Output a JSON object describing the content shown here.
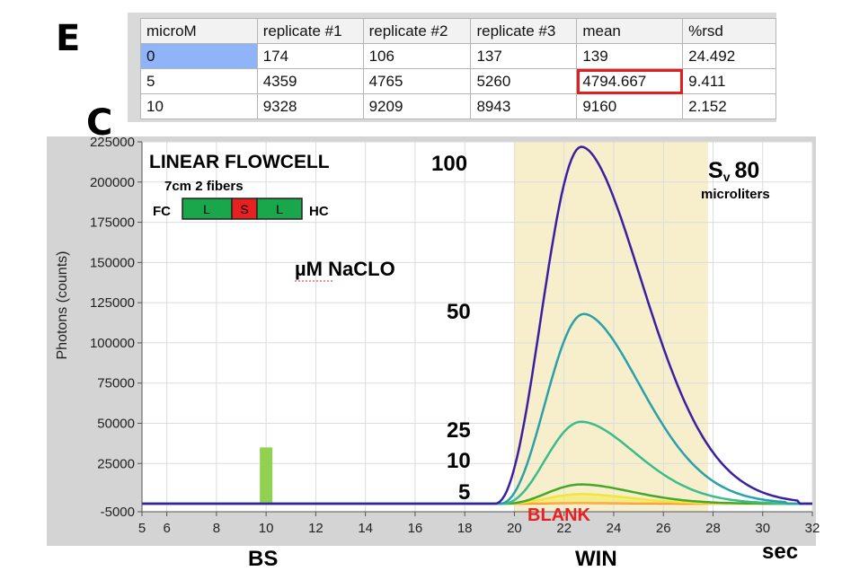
{
  "panels": {
    "top": "E",
    "bottom": "C"
  },
  "table": {
    "headers": [
      "microM",
      "replicate #1",
      "replicate #2",
      "replicate #3",
      "mean",
      "%rsd"
    ],
    "rows": [
      [
        "0",
        "174",
        "106",
        "137",
        "139",
        "24.492"
      ],
      [
        "5",
        "4359",
        "4765",
        "5260",
        "4794.667",
        "9.411"
      ],
      [
        "10",
        "9328",
        "9209",
        "8943",
        "9160",
        "2.152"
      ]
    ],
    "selected_cell": [
      0,
      0
    ],
    "highlighted_cell": [
      1,
      4
    ]
  },
  "chart_data": {
    "type": "line",
    "ylabel": "Photons (counts)",
    "xlabel": "sec",
    "xlim": [
      5,
      32
    ],
    "ylim": [
      -5000,
      225000
    ],
    "xticks": [
      5,
      6,
      8,
      10,
      12,
      14,
      16,
      18,
      20,
      22,
      24,
      26,
      28,
      30,
      32
    ],
    "yticks": [
      -5000,
      25000,
      50000,
      75000,
      100000,
      125000,
      150000,
      175000,
      200000,
      225000
    ],
    "grid": true,
    "series": [
      {
        "name": "100",
        "color": "#3b1fa0",
        "baseline": 0,
        "peak": 222000,
        "peak_x": 22.7,
        "start_x": 19.2,
        "end_x": 31.5
      },
      {
        "name": "50",
        "color": "#2aa0a8",
        "baseline": 0,
        "peak": 118000,
        "peak_x": 22.8,
        "start_x": 19.4,
        "end_x": 31
      },
      {
        "name": "25",
        "color": "#3cbc8a",
        "baseline": 0,
        "peak": 51000,
        "peak_x": 22.7,
        "start_x": 19.5,
        "end_x": 30.5
      },
      {
        "name": "10",
        "color": "#44a828",
        "baseline": 0,
        "peak": 12000,
        "peak_x": 22.7,
        "start_x": 19.6,
        "end_x": 30
      },
      {
        "name": "5",
        "color": "#f0e63c",
        "baseline": 0,
        "peak": 6000,
        "peak_x": 22.7,
        "start_x": 19.6,
        "end_x": 29.5
      },
      {
        "name": "BLANK",
        "color": "#ff8c3a",
        "baseline": 0,
        "peak": 400,
        "peak_x": 22.7,
        "start_x": 19.6,
        "end_x": 29
      }
    ],
    "window_region": {
      "label": "WIN",
      "x_start": 20,
      "x_end": 27.8,
      "color": "#f7efcc"
    },
    "bs_marker": {
      "label": "BS",
      "x": 10,
      "value": 35000,
      "color": "#92d050"
    },
    "annotations": {
      "title": "LINEAR FLOWCELL",
      "subtitle": "7cm 2 fibers",
      "fc": "FC",
      "hc": "HC",
      "segments": [
        "L",
        "S",
        "L"
      ],
      "segment_colors": [
        "#1aa64a",
        "#e82020",
        "#1aa64a"
      ],
      "analyte": "µM NaCLO",
      "sv_main": "S",
      "sv_sub": "v",
      "sv_value": "80",
      "sv_unit": "microliters",
      "blank_label": "BLANK",
      "blank_color": "#e82020"
    }
  }
}
